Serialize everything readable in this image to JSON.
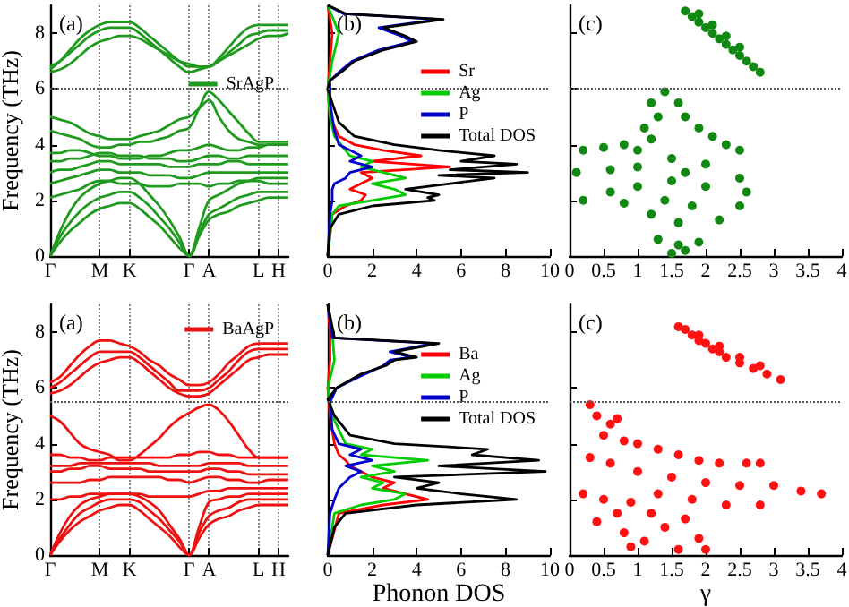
{
  "chart_data": [
    {
      "type": "line",
      "ylabel": "Frequency (THz)",
      "annotations": [
        "(a)"
      ],
      "categories": [
        "Γ",
        null,
        null,
        null,
        null,
        "M",
        null,
        null,
        "K",
        null,
        null,
        null,
        null,
        null,
        "Γ",
        null,
        "A",
        null,
        null,
        null,
        null,
        "L",
        null,
        "H",
        null
      ],
      "ylim": [
        0,
        9
      ],
      "yticks": [
        0,
        2,
        4,
        6,
        8
      ],
      "grid": "x",
      "legend": "right",
      "ref_lines": [
        {
          "axis": "y",
          "value": 6,
          "line_style": "dotted"
        }
      ],
      "series": [
        {
          "name": "SrAgP",
          "color": "#1f9a1f",
          "values": [
            6.7,
            7.0,
            7.4,
            7.8,
            8.1,
            8.3,
            8.4,
            8.4,
            8.4,
            8.2,
            7.9,
            7.6,
            7.3,
            7.0,
            6.8,
            6.8,
            6.8,
            7.1,
            7.5,
            7.9,
            8.2,
            8.3,
            8.3,
            8.3,
            8.3
          ]
        },
        {
          "color": "#1f9a1f",
          "values": [
            6.8,
            7.0,
            7.3,
            7.6,
            7.9,
            8.1,
            8.2,
            8.2,
            8.2,
            8.0,
            7.7,
            7.4,
            7.1,
            6.8,
            6.6,
            6.7,
            6.8,
            7.0,
            7.3,
            7.6,
            7.9,
            8.0,
            8.1,
            8.1,
            8.1
          ]
        },
        {
          "color": "#1f9a1f",
          "values": [
            6.6,
            6.7,
            6.9,
            7.2,
            7.5,
            7.7,
            7.8,
            7.9,
            7.9,
            7.8,
            7.6,
            7.4,
            7.2,
            7.0,
            6.9,
            6.8,
            6.8,
            7.0,
            7.2,
            7.4,
            7.6,
            7.8,
            7.9,
            7.9,
            8.0
          ]
        },
        {
          "color": "#1f9a1f",
          "values": [
            0,
            0.5,
            0.9,
            1.2,
            1.5,
            1.7,
            1.8,
            1.9,
            1.9,
            1.7,
            1.4,
            1.1,
            0.7,
            0.3,
            0,
            0.7,
            1.3,
            1.5,
            1.6,
            1.8,
            1.9,
            2.0,
            2.1,
            2.1,
            2.1
          ]
        },
        {
          "color": "#1f9a1f",
          "values": [
            0,
            0.7,
            1.2,
            1.6,
            1.9,
            2.1,
            2.2,
            2.3,
            2.3,
            2.1,
            1.8,
            1.4,
            1.0,
            0.5,
            0,
            0.8,
            1.5,
            1.7,
            1.9,
            2.1,
            2.2,
            2.3,
            2.3,
            2.3,
            2.3
          ]
        },
        {
          "color": "#1f9a1f",
          "values": [
            0,
            0.9,
            1.6,
            2.1,
            2.4,
            2.6,
            2.7,
            2.8,
            2.8,
            2.6,
            2.2,
            1.8,
            1.3,
            0.7,
            0,
            1.0,
            2.0,
            2.2,
            2.4,
            2.6,
            2.7,
            2.8,
            2.8,
            2.8,
            2.8
          ]
        },
        {
          "color": "#1f9a1f",
          "values": [
            2.1,
            2.2,
            2.3,
            2.4,
            2.6,
            2.7,
            2.7,
            2.6,
            2.6,
            2.6,
            2.5,
            2.5,
            2.5,
            2.6,
            2.6,
            2.6,
            2.5,
            2.6,
            2.6,
            2.7,
            2.7,
            2.7,
            2.6,
            2.6,
            2.6
          ]
        },
        {
          "color": "#1f9a1f",
          "values": [
            2.6,
            2.7,
            2.8,
            2.9,
            3.0,
            3.1,
            3.1,
            3.0,
            3.0,
            3.0,
            2.9,
            2.9,
            2.9,
            2.8,
            2.8,
            2.9,
            3.0,
            3.0,
            3.0,
            3.0,
            3.0,
            3.0,
            3.0,
            3.0,
            3.0
          ]
        },
        {
          "color": "#1f9a1f",
          "values": [
            3.0,
            3.1,
            3.1,
            3.2,
            3.3,
            3.4,
            3.4,
            3.3,
            3.3,
            3.3,
            3.3,
            3.3,
            3.2,
            3.2,
            3.2,
            3.3,
            3.3,
            3.3,
            3.4,
            3.4,
            3.3,
            3.3,
            3.3,
            3.3,
            3.3
          ]
        },
        {
          "color": "#1f9a1f",
          "values": [
            3.4,
            3.4,
            3.5,
            3.5,
            3.6,
            3.7,
            3.7,
            3.6,
            3.6,
            3.6,
            3.5,
            3.5,
            3.5,
            3.4,
            3.4,
            3.5,
            3.6,
            3.6,
            3.5,
            3.5,
            3.6,
            3.6,
            3.6,
            3.6,
            3.6
          ]
        },
        {
          "color": "#1f9a1f",
          "values": [
            3.7,
            3.7,
            3.8,
            3.8,
            3.7,
            3.6,
            3.6,
            3.5,
            3.5,
            3.5,
            3.6,
            3.6,
            3.7,
            3.8,
            3.8,
            3.9,
            4.0,
            3.9,
            3.8,
            3.8,
            3.9,
            3.9,
            4.0,
            4.0,
            4.0
          ]
        },
        {
          "color": "#1f9a1f",
          "values": [
            4.5,
            4.4,
            4.3,
            4.2,
            4.0,
            3.9,
            3.9,
            4.0,
            4.0,
            4.1,
            4.1,
            4.2,
            4.3,
            4.5,
            4.6,
            5.3,
            5.9,
            5.6,
            5.2,
            4.8,
            4.4,
            4.1,
            4.1,
            4.1,
            4.1
          ]
        },
        {
          "color": "#1f9a1f",
          "values": [
            5.0,
            4.9,
            4.8,
            4.6,
            4.4,
            4.3,
            4.2,
            4.2,
            4.2,
            4.3,
            4.4,
            4.5,
            4.7,
            4.9,
            5.0,
            5.3,
            5.6,
            5.0,
            4.5,
            4.2,
            4.1,
            4.0,
            4.0,
            4.0,
            4.0
          ]
        }
      ]
    },
    {
      "type": "line",
      "annotations": [
        "(b)"
      ],
      "xlim": [
        0,
        10
      ],
      "xticks": [
        0,
        2,
        4,
        6,
        8,
        10
      ],
      "ylim": [
        0,
        9
      ],
      "yticks": [
        0,
        2,
        4,
        6,
        8
      ],
      "tick_labels": "x",
      "legend": "top right",
      "ref_lines": [
        {
          "axis": "y",
          "value": 6,
          "line_style": "dotted"
        }
      ],
      "series": [
        {
          "name": "Sr",
          "color": "#ff0000",
          "x": [
            0,
            0.2,
            0.8,
            1.5,
            1.7,
            1.0,
            1.5,
            2.0,
            1.5,
            5.5,
            2.0,
            4.2,
            2.5,
            1.2,
            0.5,
            0.1,
            0,
            0.1,
            0.2,
            0
          ],
          "values": [
            0,
            1.5,
            1.8,
            2.0,
            2.2,
            2.4,
            2.6,
            2.8,
            3.0,
            3.2,
            3.4,
            3.6,
            3.8,
            4.0,
            4.3,
            5.0,
            6.0,
            7.0,
            8.0,
            9.0
          ]
        },
        {
          "name": "Ag",
          "color": "#00cc00",
          "x": [
            0,
            0.2,
            0.5,
            2.0,
            3.5,
            3.0,
            2.0,
            3.5,
            2.5,
            1.5,
            2.0,
            1.0,
            0.8,
            0.6,
            0.3,
            0.1,
            0,
            0.2,
            0.5,
            0
          ],
          "values": [
            0,
            1.5,
            1.8,
            2.0,
            2.2,
            2.4,
            2.6,
            2.8,
            3.0,
            3.2,
            3.4,
            3.6,
            3.8,
            4.0,
            4.3,
            5.0,
            6.0,
            7.0,
            8.0,
            9.0
          ]
        },
        {
          "name": "P",
          "color": "#0000cc",
          "x": [
            0,
            0.1,
            0.2,
            0.2,
            0.3,
            0.8,
            1.0,
            2.0,
            1.0,
            1.5,
            1.0,
            0.5,
            0.3,
            0.1,
            0.1,
            0.5,
            1.1,
            2.3,
            3.8,
            3.3,
            2.3,
            5.0,
            0.7,
            0
          ],
          "values": [
            0,
            1.5,
            2.0,
            2.4,
            2.6,
            2.8,
            3.0,
            3.2,
            3.4,
            3.6,
            3.8,
            4.0,
            4.5,
            5.5,
            6.3,
            6.6,
            7.0,
            7.4,
            7.7,
            7.9,
            8.2,
            8.5,
            8.7,
            9.0
          ]
        },
        {
          "name": "Total DOS",
          "color": "#000000",
          "x": [
            0,
            0.1,
            0.5,
            2.0,
            4.8,
            4.5,
            5.0,
            3.5,
            5.5,
            7.5,
            5.0,
            9.0,
            5.5,
            8.5,
            6.0,
            7.5,
            5.0,
            3.0,
            1.2,
            0.5,
            0.2,
            0,
            0.1,
            0.6,
            1.2,
            2.5,
            4.0,
            3.5,
            2.5,
            5.2,
            0.8,
            0
          ],
          "values": [
            0,
            1.0,
            1.5,
            1.8,
            2.0,
            2.1,
            2.2,
            2.4,
            2.6,
            2.8,
            2.9,
            3.0,
            3.1,
            3.3,
            3.4,
            3.6,
            3.8,
            4.0,
            4.3,
            4.8,
            5.5,
            6.0,
            6.3,
            6.6,
            7.0,
            7.4,
            7.7,
            7.9,
            8.2,
            8.5,
            8.7,
            9.0
          ]
        }
      ]
    },
    {
      "type": "scatter",
      "annotations": [
        "(c)"
      ],
      "xlim": [
        0,
        4
      ],
      "xticks": [
        0,
        0.5,
        1,
        1.5,
        2,
        2.5,
        3,
        3.5,
        4
      ],
      "ylim": [
        0,
        9
      ],
      "yticks": [
        0,
        2,
        4,
        6,
        8
      ],
      "tick_labels": "x",
      "marker": "circle",
      "ref_lines": [
        {
          "axis": "y",
          "value": 6,
          "line_style": "dotted"
        }
      ],
      "series": [
        {
          "color": "#118811",
          "x": [
            1.7,
            1.8,
            1.9,
            2.0,
            2.1,
            2.2,
            2.3,
            2.4,
            2.5,
            2.6,
            2.7,
            2.8,
            1.9,
            2.1,
            2.3,
            2.5,
            1.4,
            1.2,
            1.6,
            1.3,
            1.7,
            1.1,
            1.9,
            2.1,
            2.3,
            2.5,
            0.2,
            0.5,
            0.8,
            1.0,
            0.1,
            0.6,
            1.0,
            1.5,
            2.0,
            2.5,
            2.6,
            0.2,
            0.6,
            1.0,
            1.5,
            2.0,
            2.5,
            2.2,
            1.2,
            1.6,
            1.8,
            1.3,
            1.6,
            1.9,
            1.5,
            1.7,
            1.4,
            1.7,
            1.2,
            0.8
          ],
          "values": [
            8.8,
            8.6,
            8.4,
            8.2,
            8.0,
            7.8,
            7.6,
            7.4,
            7.2,
            7.0,
            6.8,
            6.6,
            8.7,
            8.3,
            7.9,
            7.5,
            5.9,
            5.5,
            5.5,
            5.0,
            5.0,
            4.6,
            4.6,
            4.3,
            4.0,
            3.8,
            3.8,
            3.9,
            4.0,
            3.8,
            3.0,
            3.1,
            3.2,
            3.5,
            3.3,
            2.8,
            2.3,
            2.0,
            2.3,
            2.5,
            2.7,
            2.5,
            1.8,
            1.3,
            1.5,
            1.2,
            1.8,
            0.6,
            0.4,
            0.5,
            0.1,
            0.2,
            2.0,
            3.0,
            4.2,
            1.9
          ]
        }
      ]
    },
    {
      "type": "line",
      "ylabel": "Frequency (THz)",
      "annotations": [
        "(a)"
      ],
      "categories": [
        "Γ",
        null,
        null,
        null,
        null,
        "M",
        null,
        null,
        "K",
        null,
        null,
        null,
        null,
        null,
        "Γ",
        null,
        "A",
        null,
        null,
        null,
        null,
        "L",
        null,
        "H",
        null
      ],
      "ylim": [
        0,
        9
      ],
      "yticks": [
        0,
        2,
        4,
        6,
        8
      ],
      "grid": "x",
      "legend": "top right",
      "ref_lines": [
        {
          "axis": "y",
          "value": 5.5,
          "line_style": "dotted"
        }
      ],
      "series": [
        {
          "name": "BaAgP",
          "color": "#ee1111",
          "values": [
            6.2,
            6.4,
            6.8,
            7.2,
            7.5,
            7.7,
            7.7,
            7.6,
            7.5,
            7.3,
            7.0,
            6.8,
            6.5,
            6.3,
            6.1,
            6.1,
            6.2,
            6.5,
            6.9,
            7.2,
            7.5,
            7.6,
            7.6,
            7.6,
            7.6
          ]
        },
        {
          "color": "#ee1111",
          "values": [
            6.0,
            6.2,
            6.5,
            6.8,
            7.1,
            7.3,
            7.3,
            7.3,
            7.3,
            7.1,
            6.8,
            6.5,
            6.2,
            5.9,
            5.9,
            5.9,
            6.0,
            6.3,
            6.6,
            7.0,
            7.3,
            7.4,
            7.4,
            7.4,
            7.4
          ]
        },
        {
          "color": "#ee1111",
          "values": [
            5.8,
            5.9,
            6.1,
            6.4,
            6.7,
            6.9,
            7.0,
            7.1,
            7.1,
            6.9,
            6.6,
            6.3,
            6.0,
            5.8,
            5.7,
            5.7,
            5.8,
            6.1,
            6.4,
            6.7,
            7.0,
            7.1,
            7.2,
            7.2,
            7.2
          ]
        },
        {
          "color": "#ee1111",
          "values": [
            0,
            0.5,
            0.9,
            1.2,
            1.4,
            1.6,
            1.7,
            1.8,
            1.8,
            1.6,
            1.3,
            1.0,
            0.7,
            0.3,
            0,
            0.6,
            1.1,
            1.3,
            1.4,
            1.6,
            1.7,
            1.8,
            1.8,
            1.8,
            1.8
          ]
        },
        {
          "color": "#ee1111",
          "values": [
            0,
            0.6,
            1.1,
            1.5,
            1.7,
            1.9,
            2.0,
            2.0,
            2.0,
            1.9,
            1.6,
            1.3,
            0.9,
            0.5,
            0,
            0.8,
            1.4,
            1.6,
            1.7,
            1.9,
            2.0,
            2.0,
            2.0,
            2.0,
            2.0
          ]
        },
        {
          "color": "#ee1111",
          "values": [
            0,
            0.8,
            1.4,
            1.8,
            2.0,
            2.1,
            2.2,
            2.2,
            2.2,
            2.1,
            1.9,
            1.6,
            1.1,
            0.6,
            0,
            1.0,
            1.9,
            2.0,
            2.1,
            2.1,
            2.2,
            2.2,
            2.2,
            2.2,
            2.2
          ]
        },
        {
          "color": "#ee1111",
          "values": [
            2.0,
            2.0,
            2.1,
            2.1,
            2.2,
            2.2,
            2.2,
            2.2,
            2.2,
            2.2,
            2.1,
            2.1,
            2.1,
            2.1,
            2.1,
            2.2,
            2.3,
            2.3,
            2.4,
            2.4,
            2.4,
            2.4,
            2.4,
            2.4,
            2.4
          ]
        },
        {
          "color": "#ee1111",
          "values": [
            2.6,
            2.6,
            2.6,
            2.6,
            2.7,
            2.7,
            2.8,
            2.8,
            2.8,
            2.8,
            2.8,
            2.8,
            2.7,
            2.7,
            2.6,
            2.7,
            2.8,
            2.8,
            2.7,
            2.7,
            2.6,
            2.6,
            2.7,
            2.7,
            2.7
          ]
        },
        {
          "color": "#ee1111",
          "values": [
            3.0,
            3.0,
            3.1,
            3.1,
            3.2,
            3.2,
            3.1,
            3.1,
            3.1,
            3.1,
            3.0,
            3.0,
            3.0,
            3.0,
            3.0,
            3.0,
            3.1,
            3.1,
            3.0,
            3.0,
            2.9,
            2.9,
            2.9,
            2.9,
            2.9
          ]
        },
        {
          "color": "#ee1111",
          "values": [
            3.2,
            3.2,
            3.2,
            3.3,
            3.3,
            3.3,
            3.3,
            3.3,
            3.3,
            3.3,
            3.3,
            3.2,
            3.2,
            3.2,
            3.2,
            3.2,
            3.3,
            3.3,
            3.3,
            3.3,
            3.2,
            3.2,
            3.2,
            3.2,
            3.2
          ]
        },
        {
          "color": "#ee1111",
          "values": [
            3.6,
            3.6,
            3.5,
            3.5,
            3.4,
            3.4,
            3.5,
            3.5,
            3.5,
            3.5,
            3.5,
            3.5,
            3.5,
            3.6,
            3.6,
            3.7,
            3.7,
            3.6,
            3.6,
            3.5,
            3.5,
            3.5,
            3.5,
            3.5,
            3.5
          ]
        },
        {
          "color": "#ee1111",
          "values": [
            5.0,
            4.8,
            4.4,
            4.0,
            3.8,
            3.7,
            3.6,
            3.4,
            3.4,
            3.6,
            3.9,
            4.2,
            4.6,
            4.9,
            5.1,
            5.3,
            5.4,
            5.2,
            4.8,
            4.3,
            3.8,
            3.5,
            3.5,
            3.5,
            3.5
          ]
        }
      ]
    },
    {
      "type": "line",
      "xlabel": "Phonon DOS",
      "annotations": [
        "(b)"
      ],
      "xlim": [
        0,
        10
      ],
      "xticks": [
        0,
        2,
        4,
        6,
        8,
        10
      ],
      "ylim": [
        0,
        9
      ],
      "yticks": [
        0,
        2,
        4,
        6,
        8
      ],
      "tick_labels": "x",
      "legend": "top right",
      "ref_lines": [
        {
          "axis": "y",
          "value": 5.5,
          "line_style": "dotted"
        }
      ],
      "series": [
        {
          "name": "Ba",
          "color": "#ff0000",
          "x": [
            0,
            0.5,
            2.5,
            4.5,
            3.5,
            2.5,
            3.0,
            2.0,
            1.5,
            1.0,
            0.8,
            0.5,
            0.4,
            0.3,
            0.1,
            0,
            0.1,
            0.1,
            0
          ],
          "values": [
            0,
            1.5,
            1.8,
            2.0,
            2.2,
            2.4,
            2.6,
            2.8,
            3.0,
            3.2,
            3.4,
            3.6,
            3.8,
            4.0,
            5.0,
            6.0,
            7.0,
            8.0,
            9.0
          ]
        },
        {
          "name": "Ag",
          "color": "#00cc00",
          "x": [
            0,
            0.3,
            1.5,
            3.0,
            3.5,
            2.0,
            2.5,
            1.5,
            3.0,
            2.0,
            4.5,
            1.5,
            2.0,
            0.8,
            0.2,
            0,
            0.3,
            0.2,
            0
          ],
          "values": [
            0,
            1.5,
            1.8,
            2.0,
            2.2,
            2.4,
            2.6,
            2.8,
            3.0,
            3.2,
            3.4,
            3.6,
            3.8,
            4.0,
            5.0,
            6.0,
            7.0,
            8.0,
            9.0
          ]
        },
        {
          "name": "P",
          "color": "#0000cc",
          "x": [
            0,
            0.1,
            0.3,
            0.5,
            1.0,
            1.5,
            0.8,
            2.0,
            1.0,
            1.5,
            0.5,
            0.2,
            0.1,
            0.4,
            1.4,
            2.5,
            2.8,
            3.8,
            2.8,
            4.8,
            0.2,
            0
          ],
          "values": [
            0,
            1.5,
            2.0,
            2.4,
            2.8,
            3.0,
            3.2,
            3.4,
            3.6,
            3.8,
            4.0,
            4.5,
            5.5,
            6.0,
            6.4,
            6.8,
            7.0,
            7.1,
            7.3,
            7.6,
            7.8,
            9.0
          ]
        },
        {
          "name": "Total DOS",
          "color": "#000000",
          "x": [
            0,
            0.3,
            0.8,
            4.0,
            8.5,
            6.0,
            4.0,
            5.0,
            3.0,
            9.8,
            5.0,
            9.5,
            6.5,
            7.2,
            3.0,
            1.0,
            0.3,
            0,
            0.4,
            1.5,
            2.6,
            3.0,
            4.0,
            3.0,
            5.0,
            0.3,
            0
          ],
          "values": [
            0,
            1.0,
            1.5,
            1.8,
            2.0,
            2.2,
            2.4,
            2.6,
            2.8,
            3.0,
            3.2,
            3.4,
            3.6,
            3.8,
            4.0,
            4.3,
            5.0,
            5.6,
            6.0,
            6.5,
            6.8,
            7.0,
            7.1,
            7.3,
            7.6,
            7.8,
            9.0
          ]
        }
      ]
    },
    {
      "type": "scatter",
      "xlabel": "γ",
      "annotations": [
        "(c)"
      ],
      "xlim": [
        0,
        4
      ],
      "xticks": [
        0,
        0.5,
        1,
        1.5,
        2,
        2.5,
        3,
        3.5,
        4
      ],
      "ylim": [
        0,
        9
      ],
      "yticks": [
        0,
        2,
        4,
        6,
        8
      ],
      "tick_labels": "x",
      "marker": "circle",
      "ref_lines": [
        {
          "axis": "y",
          "value": 5.5,
          "line_style": "dotted"
        }
      ],
      "series": [
        {
          "color": "#ff1111",
          "x": [
            1.6,
            1.7,
            1.8,
            1.9,
            2.0,
            2.1,
            2.2,
            2.3,
            2.5,
            2.7,
            2.9,
            3.1,
            1.9,
            2.2,
            2.5,
            2.8,
            0.3,
            0.4,
            0.6,
            0.7,
            0.5,
            0.8,
            1.0,
            1.3,
            1.6,
            1.9,
            2.2,
            2.6,
            2.8,
            0.3,
            0.6,
            1.0,
            1.5,
            2.0,
            2.5,
            3.0,
            3.4,
            3.7,
            0.2,
            0.5,
            0.9,
            1.3,
            1.8,
            2.3,
            2.8,
            0.4,
            0.8,
            1.1,
            0.9,
            1.4,
            1.7,
            1.9,
            2.0,
            1.6,
            1.2,
            0.7
          ],
          "values": [
            8.2,
            8.1,
            7.9,
            7.7,
            7.6,
            7.4,
            7.3,
            7.1,
            6.9,
            6.7,
            6.5,
            6.3,
            7.9,
            7.5,
            7.1,
            6.8,
            5.4,
            5.0,
            4.7,
            4.9,
            4.3,
            4.1,
            4.0,
            3.8,
            3.6,
            3.4,
            3.3,
            3.3,
            3.3,
            3.5,
            3.3,
            3.0,
            2.8,
            2.6,
            2.5,
            2.5,
            2.3,
            2.2,
            2.2,
            2.0,
            1.9,
            2.2,
            2.0,
            1.8,
            1.8,
            1.2,
            0.8,
            0.5,
            0.3,
            1.0,
            1.3,
            0.6,
            0.2,
            0.2,
            1.5,
            1.5
          ]
        }
      ]
    }
  ]
}
